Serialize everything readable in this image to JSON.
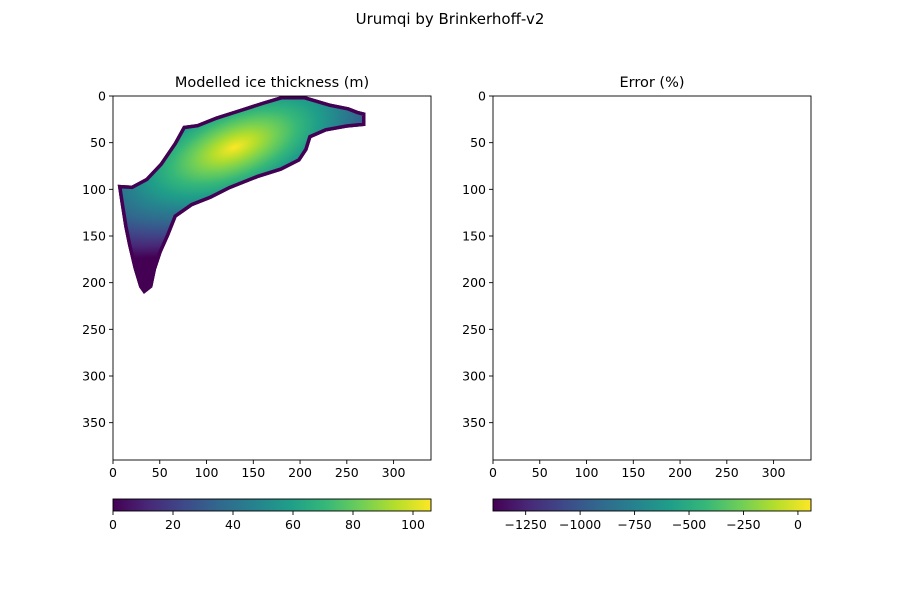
{
  "figure": {
    "suptitle": "Urumqi by Brinkerhoff-v2"
  },
  "chart_data": [
    {
      "type": "heatmap",
      "title": "Modelled ice thickness (m)",
      "xlabel": "",
      "ylabel": "",
      "xlim": [
        0,
        340
      ],
      "ylim": [
        390,
        0
      ],
      "xticks": [
        0,
        50,
        100,
        150,
        200,
        250,
        300
      ],
      "yticks": [
        0,
        50,
        100,
        150,
        200,
        250,
        300,
        350
      ],
      "colormap": "viridis",
      "colorbar": {
        "orientation": "horizontal",
        "placement": "bottom",
        "range": [
          0,
          106
        ],
        "ticks": [
          0,
          20,
          40,
          60,
          80,
          100
        ]
      },
      "thickness_max_m": 106,
      "peak_location": {
        "x": 130,
        "y": 55
      },
      "glacier_outline": [
        [
          5,
          95
        ],
        [
          20,
          96
        ],
        [
          35,
          88
        ],
        [
          50,
          72
        ],
        [
          65,
          50
        ],
        [
          75,
          32
        ],
        [
          90,
          30
        ],
        [
          110,
          22
        ],
        [
          135,
          14
        ],
        [
          160,
          6
        ],
        [
          180,
          0
        ],
        [
          205,
          0
        ],
        [
          232,
          8
        ],
        [
          252,
          12
        ],
        [
          262,
          16
        ],
        [
          270,
          18
        ],
        [
          270,
          32
        ],
        [
          250,
          34
        ],
        [
          228,
          38
        ],
        [
          212,
          45
        ],
        [
          208,
          58
        ],
        [
          200,
          70
        ],
        [
          180,
          80
        ],
        [
          155,
          88
        ],
        [
          125,
          100
        ],
        [
          105,
          110
        ],
        [
          85,
          118
        ],
        [
          68,
          130
        ],
        [
          60,
          150
        ],
        [
          52,
          168
        ],
        [
          46,
          186
        ],
        [
          42,
          205
        ],
        [
          33,
          212
        ],
        [
          28,
          205
        ],
        [
          22,
          185
        ],
        [
          16,
          160
        ],
        [
          12,
          140
        ],
        [
          8,
          115
        ]
      ]
    },
    {
      "type": "heatmap",
      "title": "Error (%)",
      "xlabel": "",
      "ylabel": "",
      "xlim": [
        0,
        340
      ],
      "ylim": [
        390,
        0
      ],
      "xticks": [
        0,
        50,
        100,
        150,
        200,
        250,
        300
      ],
      "yticks": [
        0,
        50,
        100,
        150,
        200,
        250,
        300,
        350
      ],
      "colormap": "viridis",
      "colorbar": {
        "orientation": "horizontal",
        "placement": "bottom",
        "range": [
          -1400,
          60
        ],
        "ticks": [
          -1250,
          -1000,
          -750,
          -500,
          -250,
          0
        ]
      },
      "values": []
    }
  ]
}
